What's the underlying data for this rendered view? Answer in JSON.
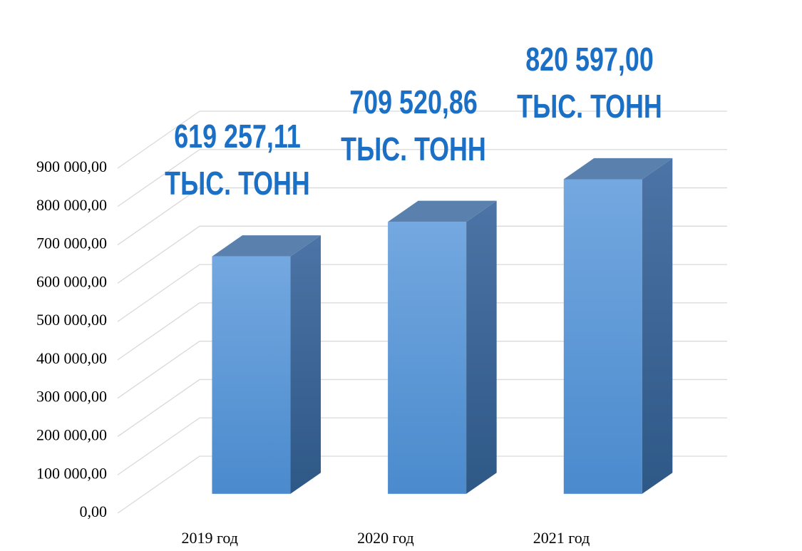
{
  "chart_data": {
    "type": "bar3d",
    "categories": [
      "2019 год",
      "2020 год",
      "2021 год"
    ],
    "values": [
      619257.11,
      709520.86,
      820597.0
    ],
    "value_labels": [
      "619 257,11 ТЫС. ТОНН",
      "709 520,86 ТЫС. ТОНН",
      "820 597,00 ТЫС. ТОНН"
    ],
    "color": "#5b9bd5",
    "ylim": [
      0,
      900000
    ],
    "yticks": [
      {
        "value": 0,
        "label": "0,00"
      },
      {
        "value": 100000,
        "label": "100 000,00"
      },
      {
        "value": 200000,
        "label": "200 000,00"
      },
      {
        "value": 300000,
        "label": "300 000,00"
      },
      {
        "value": 400000,
        "label": "400 000,00"
      },
      {
        "value": 500000,
        "label": "500 000,00"
      },
      {
        "value": 600000,
        "label": "600 000,00"
      },
      {
        "value": 700000,
        "label": "700 000,00"
      },
      {
        "value": 800000,
        "label": "800 000,00"
      },
      {
        "value": 900000,
        "label": "900 000,00"
      }
    ],
    "grid": true
  }
}
